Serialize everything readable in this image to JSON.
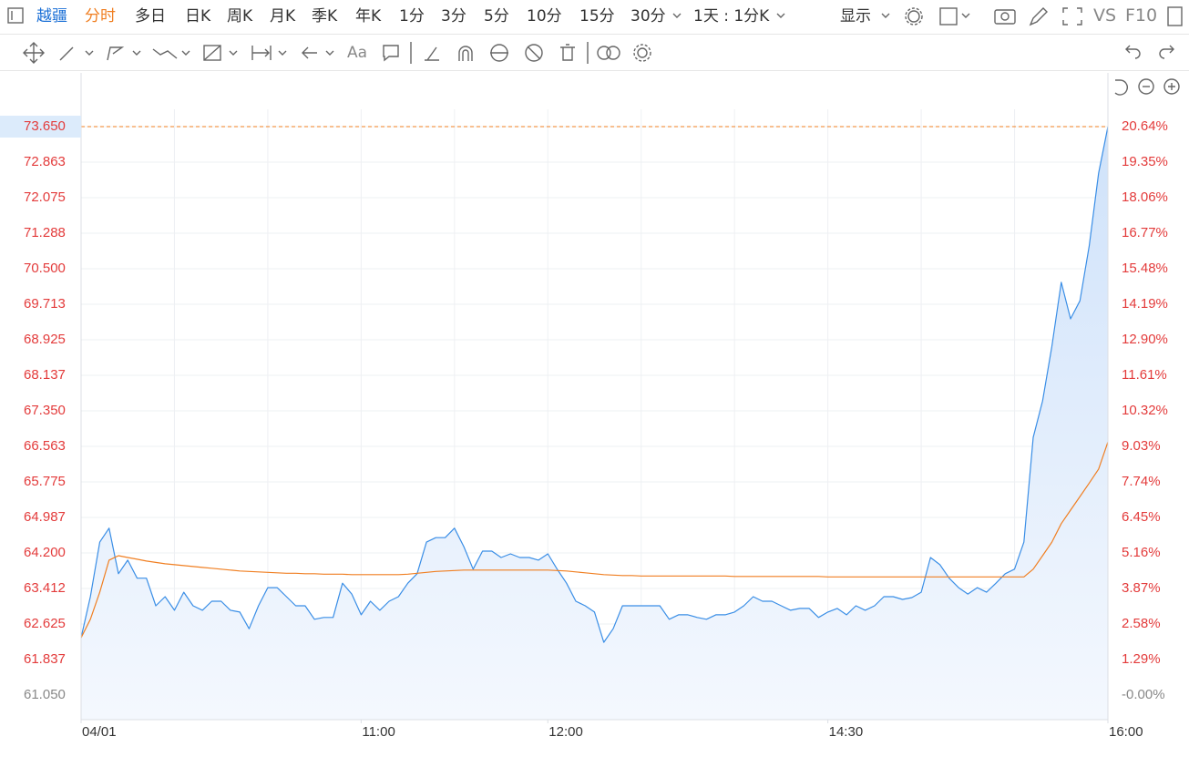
{
  "toolbar": {
    "symbol": "越疆",
    "periods": [
      "分时",
      "多日",
      "日K",
      "周K",
      "月K",
      "季K",
      "年K",
      "1分",
      "3分",
      "5分",
      "10分",
      "15分",
      "30分"
    ],
    "interval": "1天 : 1分K",
    "display": "显示",
    "vs": "VS",
    "f10": "F10",
    "text_tool": "Aa"
  },
  "chart_data": {
    "type": "line",
    "x": [
      0,
      1,
      2,
      3,
      4,
      5,
      6,
      7,
      8,
      9,
      10,
      11,
      12,
      13,
      14,
      15,
      16,
      17,
      18,
      19,
      20,
      21,
      22,
      23,
      24,
      25,
      26,
      27,
      28,
      29,
      30,
      31,
      32,
      33,
      34,
      35,
      36,
      37,
      38,
      39,
      40,
      41,
      42,
      43,
      44,
      45,
      46,
      47,
      48,
      49,
      50,
      51,
      52,
      53,
      54,
      55,
      56,
      57,
      58,
      59,
      60,
      61,
      62,
      63,
      64,
      65,
      66,
      67,
      68,
      69,
      70,
      71,
      72,
      73,
      74,
      75,
      76,
      77,
      78,
      79,
      80,
      81,
      82,
      83,
      84,
      85,
      86,
      87,
      88,
      89,
      90,
      91,
      92,
      93,
      94,
      95,
      96,
      97,
      98,
      99,
      100,
      101,
      102,
      103,
      104,
      105,
      106,
      107,
      108,
      109,
      110
    ],
    "series": [
      {
        "color": "#3a8ee6",
        "area": true,
        "values": [
          62.32,
          63.23,
          64.44,
          64.75,
          63.74,
          64.04,
          63.64,
          63.64,
          63.03,
          63.23,
          62.93,
          63.33,
          63.03,
          62.93,
          63.13,
          63.13,
          62.93,
          62.89,
          62.52,
          63.03,
          63.43,
          63.43,
          63.23,
          63.03,
          63.03,
          62.73,
          62.77,
          62.77,
          63.53,
          63.29,
          62.83,
          63.13,
          62.93,
          63.13,
          63.23,
          63.53,
          63.74,
          64.44,
          64.54,
          64.54,
          64.75,
          64.34,
          63.84,
          64.24,
          64.24,
          64.1,
          64.18,
          64.1,
          64.1,
          64.04,
          64.18,
          63.84,
          63.53,
          63.13,
          63.03,
          62.89,
          62.22,
          62.52,
          63.03,
          63.03,
          63.03,
          63.03,
          63.03,
          62.73,
          62.83,
          62.83,
          62.77,
          62.73,
          62.83,
          62.83,
          62.89,
          63.03,
          63.23,
          63.13,
          63.13,
          63.03,
          62.93,
          62.97,
          62.97,
          62.77,
          62.89,
          62.97,
          62.83,
          63.03,
          62.93,
          63.03,
          63.23,
          63.23,
          63.17,
          63.21,
          63.33,
          64.1,
          63.94,
          63.64,
          63.43,
          63.29,
          63.43,
          63.33,
          63.53,
          63.74,
          63.84,
          64.44,
          66.76,
          67.57,
          68.78,
          70.2,
          69.39,
          69.79,
          71.01,
          72.62,
          73.65
        ]
      },
      {
        "color": "#f07f22",
        "area": false,
        "values": [
          62.32,
          62.73,
          63.33,
          64.04,
          64.14,
          64.1,
          64.06,
          64.02,
          63.99,
          63.96,
          63.94,
          63.92,
          63.9,
          63.88,
          63.86,
          63.84,
          63.82,
          63.8,
          63.79,
          63.78,
          63.77,
          63.76,
          63.75,
          63.75,
          63.74,
          63.74,
          63.73,
          63.73,
          63.73,
          63.72,
          63.72,
          63.72,
          63.72,
          63.72,
          63.72,
          63.73,
          63.75,
          63.77,
          63.79,
          63.8,
          63.81,
          63.82,
          63.82,
          63.82,
          63.82,
          63.82,
          63.82,
          63.82,
          63.82,
          63.82,
          63.82,
          63.81,
          63.8,
          63.78,
          63.76,
          63.74,
          63.72,
          63.71,
          63.7,
          63.7,
          63.69,
          63.69,
          63.69,
          63.69,
          63.69,
          63.69,
          63.69,
          63.69,
          63.69,
          63.69,
          63.68,
          63.68,
          63.68,
          63.68,
          63.68,
          63.68,
          63.68,
          63.68,
          63.68,
          63.68,
          63.67,
          63.67,
          63.67,
          63.67,
          63.67,
          63.67,
          63.67,
          63.67,
          63.67,
          63.67,
          63.67,
          63.67,
          63.67,
          63.67,
          63.67,
          63.67,
          63.67,
          63.67,
          63.67,
          63.67,
          63.67,
          63.67,
          63.84,
          64.14,
          64.44,
          64.85,
          65.15,
          65.45,
          65.75,
          66.06,
          66.66
        ]
      }
    ],
    "xlim": [
      0,
      110
    ],
    "xticks": [
      {
        "value": 0,
        "label": "04/01"
      },
      {
        "value": 30,
        "label": "11:00"
      },
      {
        "value": 50,
        "label": "12:00"
      },
      {
        "value": 80,
        "label": "14:30"
      },
      {
        "value": 110,
        "label": "16:00"
      }
    ],
    "xgrid": [
      0,
      10,
      20,
      30,
      40,
      50,
      60,
      70,
      80,
      90,
      100,
      110
    ],
    "ylim": [
      60.505,
      74.034
    ],
    "yticks": [
      {
        "value": 61.05,
        "label": "61.050"
      },
      61.837,
      62.625,
      63.412,
      {
        "value": 64.2,
        "label": "64.200"
      },
      64.987,
      65.775,
      66.563,
      {
        "value": 67.35,
        "label": "67.350"
      },
      68.137,
      68.925,
      69.713,
      {
        "value": 70.5,
        "label": "70.500"
      },
      71.288,
      72.075,
      72.863,
      {
        "value": 73.65,
        "label": "73.650"
      }
    ],
    "y2lim": [
      -0.893,
      21.27
    ],
    "y2ticks": [
      {
        "value": 0,
        "label": "-0.00%"
      },
      {
        "value": 1.29,
        "label": "1.29%"
      },
      {
        "value": 2.58,
        "label": "2.58%"
      },
      {
        "value": 3.87,
        "label": "3.87%"
      },
      {
        "value": 5.16,
        "label": "5.16%"
      },
      {
        "value": 6.45,
        "label": "6.45%"
      },
      {
        "value": 7.74,
        "label": "7.74%"
      },
      {
        "value": 9.03,
        "label": "9.03%"
      },
      {
        "value": 10.32,
        "label": "10.32%"
      },
      {
        "value": 11.61,
        "label": "11.61%"
      },
      {
        "value": 12.9,
        "label": "12.90%"
      },
      {
        "value": 14.19,
        "label": "14.19%"
      },
      {
        "value": 15.48,
        "label": "15.48%"
      },
      {
        "value": 16.77,
        "label": "16.77%"
      },
      {
        "value": 18.06,
        "label": "18.06%"
      },
      {
        "value": 19.35,
        "label": "19.35%"
      },
      {
        "value": 20.64,
        "label": "20.64%"
      }
    ],
    "grid": true,
    "up_color": "#e33b3b",
    "flat_color": "#888888"
  }
}
